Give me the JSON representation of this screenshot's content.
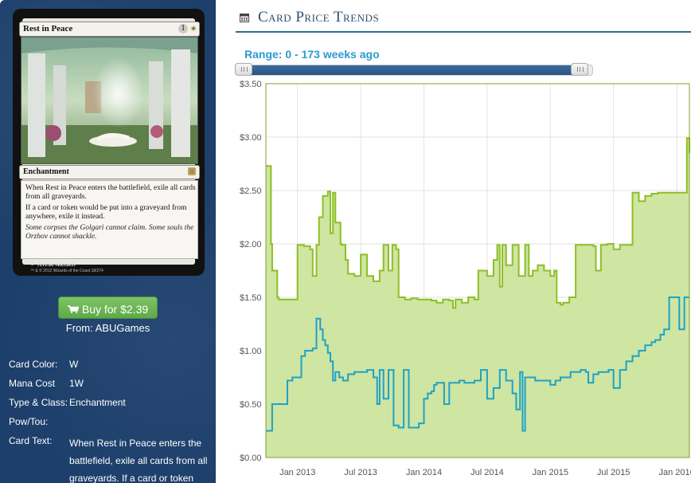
{
  "card": {
    "name": "Rest in Peace",
    "mana_generic": "1",
    "mana_symbol": "white-sun-icon",
    "type_line": "Enchantment",
    "rules_text_1": "When Rest in Peace enters the battlefield, exile all cards from all graveyards.",
    "rules_text_2": "If a card or token would be put into a graveyard from anywhere, exile it instead.",
    "flavor_text": "Some corpses the Golgari cannot claim. Some souls the Orzhov cannot shackle.",
    "artist": "Terese Nielsen",
    "copyright": "™ & © 2012 Wizards of the Coast 18/274"
  },
  "buy": {
    "label": "Buy for $2.39",
    "from": "From: ABUGames",
    "icon": "cart-icon"
  },
  "info": {
    "labels": {
      "color": "Card Color:",
      "mana_cost": "Mana Cost",
      "type_class": "Type & Class:",
      "pow_tou": "Pow/Tou:",
      "card_text": "Card Text:"
    },
    "values": {
      "color": "W",
      "mana_cost": "1W",
      "type_class": "Enchantment",
      "pow_tou": "",
      "card_text": "When Rest in Peace enters the battlefield, exile all cards from all graveyards. If a card or token"
    }
  },
  "header": {
    "title": "Card Price Trends",
    "icon": "calendar-icon",
    "range_label": "Range: 0 - 173 weeks ago"
  },
  "colors": {
    "sidebar_bg": "#1c3f6b",
    "buy_green": "#6db656",
    "accent_blue": "#2a9bd0",
    "series_green": "#8cbf26",
    "series_green_fill": "#cfe5a2",
    "series_blue": "#1ea3c6"
  },
  "chart_data": {
    "type": "line",
    "y_ticks": [
      "$0.00",
      "$0.50",
      "$1.00",
      "$1.50",
      "$2.00",
      "$2.50",
      "$3.00",
      "$3.50"
    ],
    "x_ticks": [
      "Jan 2013",
      "Jul 2013",
      "Jan 2014",
      "Jul 2014",
      "Jan 2015",
      "Jul 2015",
      "Jan 2016"
    ],
    "ylim": [
      0,
      3.5
    ],
    "xlim": [
      2012.75,
      2016.1
    ],
    "grid": true,
    "legend": "none",
    "series": [
      {
        "color": "green-filled",
        "x": [
          2012.75,
          2012.79,
          2012.8,
          2012.84,
          2012.85,
          2012.99,
          2013.0,
          2013.05,
          2013.07,
          2013.1,
          2013.12,
          2013.15,
          2013.17,
          2013.2,
          2013.24,
          2013.26,
          2013.28,
          2013.3,
          2013.34,
          2013.35,
          2013.38,
          2013.4,
          2013.45,
          2013.5,
          2013.55,
          2013.6,
          2013.65,
          2013.68,
          2013.7,
          2013.72,
          2013.75,
          2013.78,
          2013.8,
          2013.85,
          2013.9,
          2013.95,
          2014.0,
          2014.03,
          2014.06,
          2014.1,
          2014.15,
          2014.2,
          2014.23,
          2014.25,
          2014.3,
          2014.35,
          2014.4,
          2014.43,
          2014.5,
          2014.55,
          2014.58,
          2014.6,
          2014.62,
          2014.65,
          2014.7,
          2014.75,
          2014.8,
          2014.83,
          2014.86,
          2014.9,
          2014.95,
          2015.0,
          2015.03,
          2015.05,
          2015.08,
          2015.1,
          2015.15,
          2015.2,
          2015.25,
          2015.3,
          2015.34,
          2015.36,
          2015.4,
          2015.45,
          2015.5,
          2015.55,
          2015.6,
          2015.65,
          2015.7,
          2015.75,
          2015.8,
          2015.85,
          2015.9,
          2015.95,
          2016.0,
          2016.05,
          2016.08,
          2016.1
        ],
        "y": [
          2.73,
          2.0,
          1.75,
          1.5,
          1.48,
          1.48,
          1.99,
          1.98,
          1.98,
          1.95,
          1.7,
          1.99,
          2.25,
          2.45,
          2.49,
          2.1,
          2.48,
          2.2,
          2.0,
          1.99,
          1.85,
          1.72,
          1.7,
          1.9,
          1.7,
          1.65,
          1.75,
          1.99,
          1.99,
          1.75,
          1.99,
          1.95,
          1.5,
          1.48,
          1.49,
          1.48,
          1.48,
          1.48,
          1.47,
          1.45,
          1.48,
          1.47,
          1.4,
          1.48,
          1.45,
          1.5,
          1.48,
          1.75,
          1.7,
          1.85,
          1.99,
          1.6,
          1.99,
          1.8,
          1.99,
          1.7,
          1.99,
          1.7,
          1.75,
          1.8,
          1.75,
          1.7,
          1.75,
          1.45,
          1.43,
          1.45,
          1.5,
          1.99,
          1.99,
          1.99,
          1.98,
          1.75,
          1.99,
          2.0,
          1.95,
          1.99,
          1.99,
          2.48,
          2.4,
          2.45,
          2.47,
          2.48,
          2.48,
          2.48,
          2.48,
          2.48,
          2.99,
          2.85
        ]
      },
      {
        "color": "blue-line",
        "x": [
          2012.75,
          2012.8,
          2012.84,
          2012.88,
          2012.92,
          2012.96,
          2013.0,
          2013.03,
          2013.06,
          2013.09,
          2013.12,
          2013.15,
          2013.18,
          2013.2,
          2013.22,
          2013.24,
          2013.26,
          2013.28,
          2013.3,
          2013.33,
          2013.36,
          2013.4,
          2013.45,
          2013.5,
          2013.55,
          2013.6,
          2013.63,
          2013.65,
          2013.68,
          2013.72,
          2013.76,
          2013.8,
          2013.84,
          2013.88,
          2013.92,
          2013.96,
          2014.0,
          2014.03,
          2014.06,
          2014.08,
          2014.1,
          2014.13,
          2014.16,
          2014.2,
          2014.24,
          2014.28,
          2014.32,
          2014.36,
          2014.4,
          2014.45,
          2014.5,
          2014.55,
          2014.6,
          2014.65,
          2014.7,
          2014.73,
          2014.76,
          2014.78,
          2014.8,
          2014.84,
          2014.88,
          2014.92,
          2014.96,
          2015.0,
          2015.04,
          2015.08,
          2015.12,
          2015.16,
          2015.2,
          2015.24,
          2015.28,
          2015.3,
          2015.34,
          2015.38,
          2015.42,
          2015.46,
          2015.5,
          2015.55,
          2015.6,
          2015.65,
          2015.7,
          2015.75,
          2015.8,
          2015.83,
          2015.87,
          2015.9,
          2015.94,
          2015.98,
          2016.02,
          2016.06,
          2016.1
        ],
        "y": [
          0.25,
          0.5,
          0.5,
          0.5,
          0.72,
          0.75,
          0.75,
          0.95,
          1.0,
          1.0,
          1.02,
          1.3,
          1.2,
          1.1,
          1.05,
          0.98,
          0.9,
          0.72,
          0.8,
          0.75,
          0.72,
          0.78,
          0.8,
          0.8,
          0.82,
          0.75,
          0.5,
          0.82,
          0.55,
          0.82,
          0.3,
          0.28,
          0.82,
          0.28,
          0.28,
          0.32,
          0.55,
          0.6,
          0.62,
          0.68,
          0.7,
          0.7,
          0.5,
          0.7,
          0.7,
          0.72,
          0.7,
          0.7,
          0.72,
          0.82,
          0.55,
          0.65,
          0.82,
          0.72,
          0.6,
          0.45,
          0.8,
          0.25,
          0.75,
          0.75,
          0.72,
          0.72,
          0.72,
          0.68,
          0.72,
          0.75,
          0.75,
          0.8,
          0.8,
          0.82,
          0.8,
          0.7,
          0.78,
          0.8,
          0.8,
          0.82,
          0.65,
          0.82,
          0.9,
          0.95,
          1.0,
          1.05,
          1.08,
          1.1,
          1.15,
          1.2,
          1.5,
          1.5,
          1.2,
          1.5,
          1.5
        ]
      }
    ]
  }
}
